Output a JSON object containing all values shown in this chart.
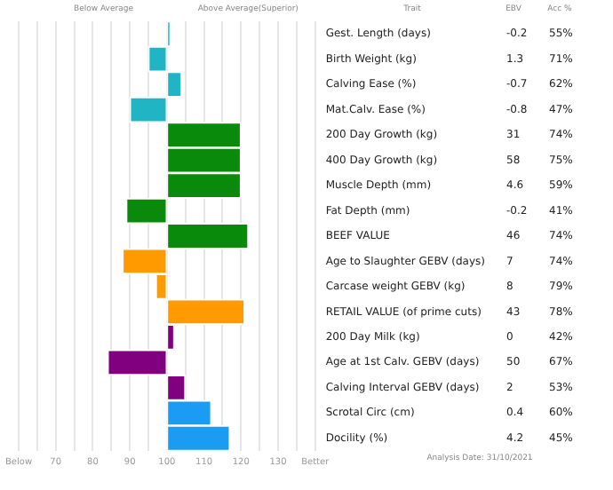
{
  "chart_data": {
    "type": "bar",
    "orientation": "horizontal",
    "categories": [
      "Gest. Length (days)",
      "Birth Weight (kg)",
      "Calving Ease (%)",
      "Mat.Calv. Ease (%)",
      "200 Day Growth (kg)",
      "400 Day Growth (kg)",
      "Muscle Depth (mm)",
      "Fat Depth (mm)",
      "BEEF VALUE",
      "Age to Slaughter GEBV (days)",
      "Carcase weight GEBV (kg)",
      "RETAIL VALUE (of prime cuts)",
      "200 Day Milk (kg)",
      "Age at 1st Calv. GEBV (days)",
      "Calving Interval GEBV (days)",
      "Scrotal Circ (cm)",
      "Docility (%)"
    ],
    "base": [
      100,
      100,
      100,
      100,
      100,
      100,
      100,
      100,
      100,
      100,
      100,
      100,
      100,
      100,
      100,
      100,
      100
    ],
    "values": [
      1,
      -5,
      4,
      -10,
      20,
      20,
      20,
      -11,
      22,
      -12,
      -3,
      21,
      2,
      -16,
      5,
      12,
      17
    ],
    "colors": [
      "#1fb5c4",
      "#1fb5c4",
      "#1fb5c4",
      "#1fb5c4",
      "#0a8a0a",
      "#0a8a0a",
      "#0a8a0a",
      "#0a8a0a",
      "#0a8a0a",
      "#ff9a00",
      "#ff9a00",
      "#ff9a00",
      "#800080",
      "#800080",
      "#800080",
      "#1b9cf2",
      "#1b9cf2"
    ],
    "xlim": [
      60,
      140
    ],
    "xticks": [
      {
        "value": 60,
        "label": "Below"
      },
      {
        "value": 65,
        "label": null
      },
      {
        "value": 70,
        "label": "70"
      },
      {
        "value": 75,
        "label": null
      },
      {
        "value": 80,
        "label": "80"
      },
      {
        "value": 85,
        "label": null
      },
      {
        "value": 90,
        "label": "90"
      },
      {
        "value": 95,
        "label": null
      },
      {
        "value": 100,
        "label": "100"
      },
      {
        "value": 105,
        "label": null
      },
      {
        "value": 110,
        "label": "110"
      },
      {
        "value": 115,
        "label": null
      },
      {
        "value": 120,
        "label": "120"
      },
      {
        "value": 125,
        "label": null
      },
      {
        "value": 130,
        "label": "130"
      },
      {
        "value": 135,
        "label": null
      },
      {
        "value": 140,
        "label": "Better"
      }
    ],
    "grid": "x",
    "annotations": [
      "Below Average",
      "Above Average(Superior)",
      "Trait",
      "EBV",
      "Acc %",
      "Analysis Date: 31/10/2021",
      "-0.2",
      "55%",
      "1.3",
      "71%",
      "-0.7",
      "62%",
      "-0.8",
      "47%",
      "31",
      "74%",
      "58",
      "75%",
      "4.6",
      "59%",
      "-0.2",
      "41%",
      "46",
      "74%",
      "7",
      "74%",
      "8",
      "79%",
      "43",
      "78%",
      "0",
      "42%",
      "50",
      "67%",
      "2",
      "53%",
      "0.4",
      "60%",
      "4.2",
      "45%"
    ]
  }
}
